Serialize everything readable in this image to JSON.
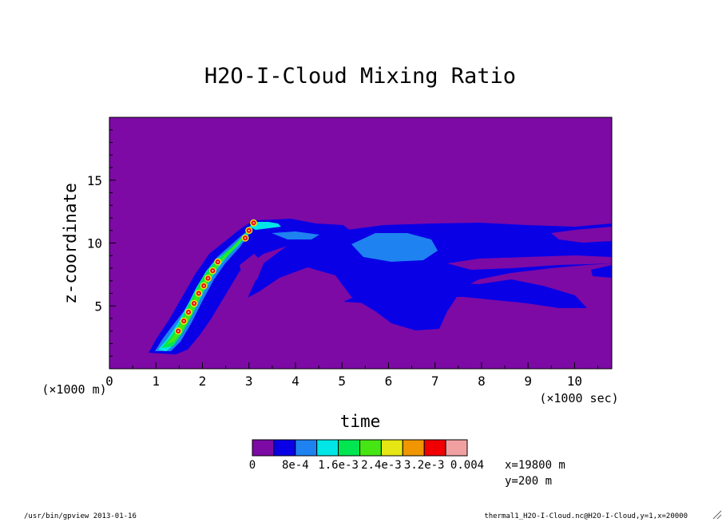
{
  "chart_data": {
    "type": "heatmap",
    "title": "H2O-I-Cloud Mixing Ratio",
    "xlabel": "time",
    "ylabel": "z-coordinate",
    "x_unit_label": "(×1000 sec)",
    "y_unit_label": "(×1000 m)",
    "xlim": [
      0,
      10.8
    ],
    "ylim": [
      0,
      20
    ],
    "x_ticks": [
      0,
      1,
      2,
      3,
      4,
      5,
      6,
      7,
      8,
      9,
      10
    ],
    "y_ticks": [
      5,
      10,
      15
    ],
    "colorbar": {
      "levels": [
        0,
        0.0004,
        0.0008,
        0.0012,
        0.0016,
        0.002,
        0.0024,
        0.0028,
        0.0032,
        0.0036,
        0.004
      ],
      "tick_labels": [
        "0",
        "8e-4",
        "1.6e-3",
        "2.4e-3",
        "3.2e-3",
        "0.004"
      ],
      "colors": [
        "#7d0aa5",
        "#0a00e6",
        "#1e82f0",
        "#00e6e6",
        "#00e650",
        "#46e614",
        "#e6e614",
        "#f09600",
        "#f00000",
        "#f0a0a0"
      ]
    },
    "grid": false,
    "legend": "colorbar-bottom"
  },
  "annotations": {
    "position_x": "x=19800 m",
    "position_y": "y=200 m",
    "footer_left": "/usr/bin/gpview  2013-01-16",
    "footer_right": "thermal1_H2O-I-Cloud.nc@H2O-I-Cloud,y=1,x=20000"
  }
}
